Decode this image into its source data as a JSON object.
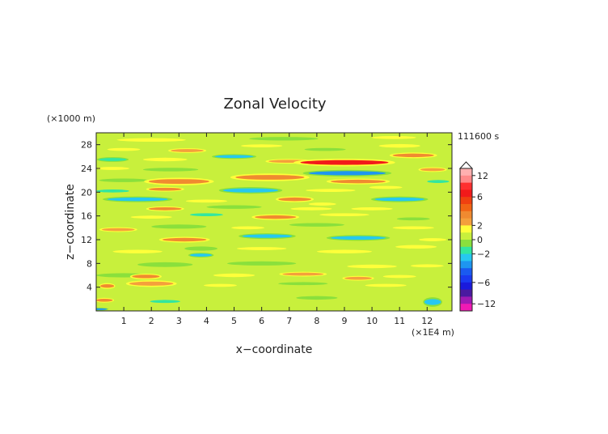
{
  "chart_data": {
    "type": "heatmap",
    "title": "Zonal Velocity",
    "time_label": "111600 s",
    "xlabel": "x−coordinate",
    "ylabel": "z−coordinate",
    "x_unit": "(×1E4 m)",
    "y_unit": "(×1000 m)",
    "xlim": [
      0,
      12.9
    ],
    "ylim": [
      0,
      30
    ],
    "xticks": [
      1,
      2,
      3,
      4,
      5,
      6,
      7,
      8,
      9,
      10,
      11,
      12
    ],
    "yticks": [
      4,
      8,
      12,
      16,
      20,
      24,
      28
    ],
    "background_value": 0.8,
    "bands": [
      {
        "x": 0.3,
        "z": 1.8,
        "len": 0.6,
        "thick": 0.5,
        "v": 3
      },
      {
        "x": 2.5,
        "z": 1.6,
        "len": 1.1,
        "thick": 0.5,
        "v": -1.5
      },
      {
        "x": 8.0,
        "z": 2.2,
        "len": 1.5,
        "thick": 0.6,
        "v": -1
      },
      {
        "x": 12.2,
        "z": 1.5,
        "len": 0.6,
        "thick": 1.0,
        "v": -3
      },
      {
        "x": 0.1,
        "z": 0.3,
        "len": 0.6,
        "thick": 0.3,
        "v": -4
      },
      {
        "x": 0.4,
        "z": 4.2,
        "len": 0.5,
        "thick": 0.6,
        "v": 3
      },
      {
        "x": 2.0,
        "z": 4.6,
        "len": 1.6,
        "thick": 0.7,
        "v": 2
      },
      {
        "x": 4.5,
        "z": 4.3,
        "len": 1.2,
        "thick": 0.5,
        "v": 1.5
      },
      {
        "x": 7.5,
        "z": 4.6,
        "len": 1.8,
        "thick": 0.5,
        "v": -0.5
      },
      {
        "x": 10.5,
        "z": 4.3,
        "len": 1.5,
        "thick": 0.5,
        "v": 1.5
      },
      {
        "x": 1.0,
        "z": 6.0,
        "len": 2.0,
        "thick": 0.7,
        "v": -0.3
      },
      {
        "x": 1.8,
        "z": 5.8,
        "len": 1.0,
        "thick": 0.6,
        "v": 3
      },
      {
        "x": 5.0,
        "z": 6.0,
        "len": 1.5,
        "thick": 0.6,
        "v": 1.5
      },
      {
        "x": 7.5,
        "z": 6.2,
        "len": 1.5,
        "thick": 0.5,
        "v": 2
      },
      {
        "x": 9.5,
        "z": 5.5,
        "len": 1.0,
        "thick": 0.5,
        "v": 2
      },
      {
        "x": 11.0,
        "z": 5.8,
        "len": 1.2,
        "thick": 0.5,
        "v": 1.5
      },
      {
        "x": 2.5,
        "z": 7.8,
        "len": 2.0,
        "thick": 0.8,
        "v": -0.5
      },
      {
        "x": 6.0,
        "z": 8.0,
        "len": 2.5,
        "thick": 0.7,
        "v": -0.2
      },
      {
        "x": 10.0,
        "z": 7.5,
        "len": 1.8,
        "thick": 0.6,
        "v": 1.5
      },
      {
        "x": 12.0,
        "z": 7.6,
        "len": 1.2,
        "thick": 0.5,
        "v": 1.8
      },
      {
        "x": 1.5,
        "z": 10.0,
        "len": 1.8,
        "thick": 0.6,
        "v": 1.5
      },
      {
        "x": 3.8,
        "z": 9.4,
        "len": 0.8,
        "thick": 0.5,
        "v": -2.5
      },
      {
        "x": 3.8,
        "z": 10.5,
        "len": 1.2,
        "thick": 0.7,
        "v": -1
      },
      {
        "x": 6.0,
        "z": 10.5,
        "len": 1.8,
        "thick": 0.5,
        "v": 1.5
      },
      {
        "x": 9.0,
        "z": 10.0,
        "len": 2.0,
        "thick": 0.6,
        "v": 1.5
      },
      {
        "x": 11.6,
        "z": 10.8,
        "len": 1.5,
        "thick": 0.6,
        "v": 1.5
      },
      {
        "x": 3.2,
        "z": 12.0,
        "len": 1.6,
        "thick": 0.6,
        "v": 3
      },
      {
        "x": 6.2,
        "z": 12.6,
        "len": 1.8,
        "thick": 0.6,
        "v": -2.5
      },
      {
        "x": 9.5,
        "z": 12.3,
        "len": 2.0,
        "thick": 0.6,
        "v": -3
      },
      {
        "x": 12.2,
        "z": 12.0,
        "len": 1.0,
        "thick": 0.5,
        "v": 1.5
      },
      {
        "x": 0.8,
        "z": 13.7,
        "len": 1.2,
        "thick": 0.5,
        "v": 2
      },
      {
        "x": 3.0,
        "z": 14.2,
        "len": 2.0,
        "thick": 0.7,
        "v": -0.5
      },
      {
        "x": 5.5,
        "z": 14.0,
        "len": 1.2,
        "thick": 0.5,
        "v": 1.5
      },
      {
        "x": 8.0,
        "z": 14.5,
        "len": 2.0,
        "thick": 0.6,
        "v": -0.5
      },
      {
        "x": 11.5,
        "z": 14.0,
        "len": 1.5,
        "thick": 0.5,
        "v": 1.5
      },
      {
        "x": 2.0,
        "z": 15.8,
        "len": 1.5,
        "thick": 0.5,
        "v": 1.8
      },
      {
        "x": 4.0,
        "z": 16.2,
        "len": 1.2,
        "thick": 0.5,
        "v": -1.5
      },
      {
        "x": 6.5,
        "z": 15.8,
        "len": 1.5,
        "thick": 0.6,
        "v": 3
      },
      {
        "x": 9.0,
        "z": 16.2,
        "len": 1.8,
        "thick": 0.5,
        "v": 1.5
      },
      {
        "x": 11.5,
        "z": 15.5,
        "len": 1.2,
        "thick": 0.5,
        "v": -1
      },
      {
        "x": 2.5,
        "z": 17.2,
        "len": 1.2,
        "thick": 0.5,
        "v": 3
      },
      {
        "x": 5.0,
        "z": 17.5,
        "len": 2.0,
        "thick": 0.6,
        "v": -0.5
      },
      {
        "x": 7.8,
        "z": 17.2,
        "len": 1.5,
        "thick": 0.5,
        "v": 1.8
      },
      {
        "x": 10.0,
        "z": 17.2,
        "len": 1.5,
        "thick": 0.5,
        "v": 1.5
      },
      {
        "x": 1.5,
        "z": 18.8,
        "len": 2.2,
        "thick": 0.6,
        "v": -3
      },
      {
        "x": 4.0,
        "z": 18.5,
        "len": 1.5,
        "thick": 0.5,
        "v": 1.8
      },
      {
        "x": 7.2,
        "z": 18.8,
        "len": 1.2,
        "thick": 0.6,
        "v": 3.5
      },
      {
        "x": 8.2,
        "z": 18.0,
        "len": 1.0,
        "thick": 0.5,
        "v": 1.5
      },
      {
        "x": 11.0,
        "z": 18.8,
        "len": 1.8,
        "thick": 0.6,
        "v": -2.5
      },
      {
        "x": 0.6,
        "z": 20.2,
        "len": 1.2,
        "thick": 0.5,
        "v": -1.5
      },
      {
        "x": 2.5,
        "z": 20.5,
        "len": 1.2,
        "thick": 0.5,
        "v": 3
      },
      {
        "x": 5.6,
        "z": 20.3,
        "len": 2.0,
        "thick": 0.7,
        "v": -2.5
      },
      {
        "x": 8.5,
        "z": 20.3,
        "len": 1.8,
        "thick": 0.5,
        "v": 1.5
      },
      {
        "x": 10.5,
        "z": 20.8,
        "len": 1.2,
        "thick": 0.5,
        "v": 1.5
      },
      {
        "x": 1.0,
        "z": 22.0,
        "len": 1.8,
        "thick": 0.6,
        "v": -0.3
      },
      {
        "x": 3.0,
        "z": 21.8,
        "len": 2.2,
        "thick": 0.8,
        "v": 3.5
      },
      {
        "x": 6.3,
        "z": 22.5,
        "len": 2.5,
        "thick": 0.8,
        "v": 3.5
      },
      {
        "x": 9.5,
        "z": 21.8,
        "len": 2.0,
        "thick": 0.6,
        "v": 3
      },
      {
        "x": 12.4,
        "z": 21.8,
        "len": 0.8,
        "thick": 0.5,
        "v": -1.5
      },
      {
        "x": 0.6,
        "z": 24.0,
        "len": 1.2,
        "thick": 0.5,
        "v": 1.5
      },
      {
        "x": 2.7,
        "z": 23.8,
        "len": 2.0,
        "thick": 0.6,
        "v": -0.5
      },
      {
        "x": 9.1,
        "z": 23.2,
        "len": 2.8,
        "thick": 0.7,
        "v": -3.5
      },
      {
        "x": 12.2,
        "z": 23.8,
        "len": 0.9,
        "thick": 0.5,
        "v": 2
      },
      {
        "x": 0.6,
        "z": 25.5,
        "len": 1.0,
        "thick": 0.5,
        "v": -2
      },
      {
        "x": 2.5,
        "z": 25.5,
        "len": 1.6,
        "thick": 0.6,
        "v": 1.5
      },
      {
        "x": 5.0,
        "z": 26.0,
        "len": 1.4,
        "thick": 0.5,
        "v": -2.5
      },
      {
        "x": 7.0,
        "z": 25.2,
        "len": 1.5,
        "thick": 0.5,
        "v": 2
      },
      {
        "x": 9.0,
        "z": 25.0,
        "len": 3.2,
        "thick": 0.8,
        "v": 6
      },
      {
        "x": 11.5,
        "z": 26.2,
        "len": 1.5,
        "thick": 0.6,
        "v": 3
      },
      {
        "x": 1.0,
        "z": 27.2,
        "len": 1.2,
        "thick": 0.5,
        "v": 1.5
      },
      {
        "x": 3.3,
        "z": 27.0,
        "len": 1.2,
        "thick": 0.5,
        "v": 2
      },
      {
        "x": 6.0,
        "z": 27.8,
        "len": 1.5,
        "thick": 0.5,
        "v": 1.5
      },
      {
        "x": 8.3,
        "z": 27.2,
        "len": 1.5,
        "thick": 0.5,
        "v": -0.3
      },
      {
        "x": 11.0,
        "z": 27.8,
        "len": 1.5,
        "thick": 0.6,
        "v": 1.5
      },
      {
        "x": 2.0,
        "z": 28.8,
        "len": 2.5,
        "thick": 0.6,
        "v": 1.5
      },
      {
        "x": 6.8,
        "z": 29.0,
        "len": 2.5,
        "thick": 0.6,
        "v": -0.3
      },
      {
        "x": 10.8,
        "z": 29.2,
        "len": 1.6,
        "thick": 0.5,
        "v": 1.5
      }
    ],
    "colorbar": {
      "tick_labels": [
        "12",
        "6",
        "2",
        "0",
        "−2",
        "−6",
        "−12"
      ],
      "tick_values": [
        12,
        6,
        2,
        0,
        -2,
        -6,
        -12
      ],
      "levels": [
        {
          "lo": 12,
          "hi": 14,
          "color": "#ffb0b0"
        },
        {
          "lo": 10,
          "hi": 12,
          "color": "#ff8a8a"
        },
        {
          "lo": 8,
          "hi": 10,
          "color": "#ff3030"
        },
        {
          "lo": 6,
          "hi": 8,
          "color": "#f21a1a"
        },
        {
          "lo": 5,
          "hi": 6,
          "color": "#f04010"
        },
        {
          "lo": 4,
          "hi": 5,
          "color": "#f26414"
        },
        {
          "lo": 3,
          "hi": 4,
          "color": "#f08a30"
        },
        {
          "lo": 2,
          "hi": 3,
          "color": "#f4a03c"
        },
        {
          "lo": 1,
          "hi": 2,
          "color": "#ffff3a"
        },
        {
          "lo": 0,
          "hi": 1,
          "color": "#c8f03c"
        },
        {
          "lo": -1,
          "hi": 0,
          "color": "#8ae03c"
        },
        {
          "lo": -2,
          "hi": -1,
          "color": "#32e6a0"
        },
        {
          "lo": -3,
          "hi": -2,
          "color": "#26c8f0"
        },
        {
          "lo": -4,
          "hi": -3,
          "color": "#1e96f0"
        },
        {
          "lo": -5,
          "hi": -4,
          "color": "#1a5af0"
        },
        {
          "lo": -6,
          "hi": -5,
          "color": "#1a3af0"
        },
        {
          "lo": -8,
          "hi": -6,
          "color": "#1a1adc"
        },
        {
          "lo": -10,
          "hi": -8,
          "color": "#4a1aa0"
        },
        {
          "lo": -12,
          "hi": -10,
          "color": "#a01ab4"
        },
        {
          "lo": -14,
          "hi": -12,
          "color": "#f01ab4"
        }
      ]
    }
  }
}
